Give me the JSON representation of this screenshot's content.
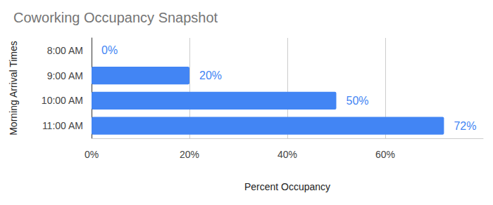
{
  "chart_data": {
    "type": "bar",
    "title": "Coworking Occupancy Snapshot",
    "orientation": "horizontal",
    "xlabel": "Percent Occupancy",
    "ylabel": "Morning Arrival Times",
    "categories": [
      "8:00 AM",
      "9:00 AM",
      "10:00 AM",
      "11:00 AM"
    ],
    "values": [
      0,
      20,
      50,
      72
    ],
    "value_labels": [
      "0%",
      "20%",
      "50%",
      "72%"
    ],
    "color": "#4285f4",
    "xlim": [
      0,
      80
    ],
    "xticks": [
      {
        "value": 0,
        "label": "0%"
      },
      {
        "value": 20,
        "label": "20%"
      },
      {
        "value": 40,
        "label": "40%"
      },
      {
        "value": 60,
        "label": "60%"
      }
    ],
    "grid": true,
    "data_labels": true
  }
}
